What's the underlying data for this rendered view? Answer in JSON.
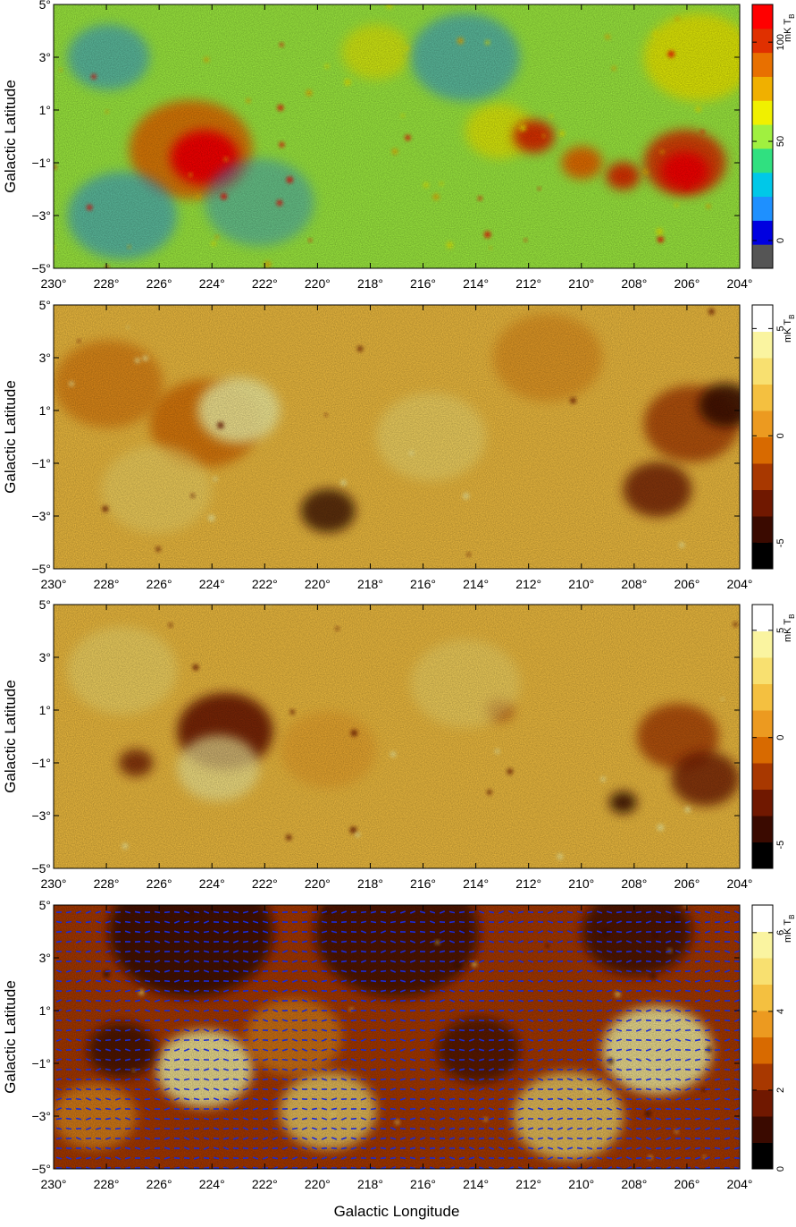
{
  "chart_data": [
    {
      "type": "heatmap",
      "ylabel": "Galactic Latitude",
      "xlim": [
        230,
        204
      ],
      "xticks": [
        {
          "value": 230,
          "label": "230°"
        },
        {
          "value": 228,
          "label": "228°"
        },
        {
          "value": 226,
          "label": "226°"
        },
        {
          "value": 224,
          "label": "224°"
        },
        {
          "value": 222,
          "label": "222°"
        },
        {
          "value": 220,
          "label": "220°"
        },
        {
          "value": 218,
          "label": "218°"
        },
        {
          "value": 216,
          "label": "216°"
        },
        {
          "value": 214,
          "label": "214°"
        },
        {
          "value": 212,
          "label": "212°"
        },
        {
          "value": 210,
          "label": "210°"
        },
        {
          "value": 208,
          "label": "208°"
        },
        {
          "value": 206,
          "label": "206°"
        },
        {
          "value": 204,
          "label": "204°"
        }
      ],
      "ylim": [
        -5,
        5
      ],
      "yticks": [
        {
          "value": 5,
          "label": "5°"
        },
        {
          "value": 3,
          "label": "3°"
        },
        {
          "value": 1,
          "label": "1°"
        },
        {
          "value": -1,
          "label": "−1°"
        },
        {
          "value": -3,
          "label": "−3°"
        },
        {
          "value": -5,
          "label": "−5°"
        }
      ],
      "colorbar_label": "mK T",
      "colorbar_label_sub": "B",
      "clim": [
        -14,
        119
      ],
      "cticks": [
        0,
        50,
        100
      ],
      "colormap": [
        "#555555",
        "#0000e0",
        "#1e90ff",
        "#00c8e8",
        "#30e080",
        "#a0f040",
        "#f0f000",
        "#f0b000",
        "#e87000",
        "#e03000",
        "#ff0000"
      ]
    },
    {
      "type": "heatmap",
      "ylabel": "Galactic Latitude",
      "xlim": [
        230,
        204
      ],
      "xticks": [
        {
          "value": 230,
          "label": "230°"
        },
        {
          "value": 228,
          "label": "228°"
        },
        {
          "value": 226,
          "label": "226°"
        },
        {
          "value": 224,
          "label": "224°"
        },
        {
          "value": 222,
          "label": "222°"
        },
        {
          "value": 220,
          "label": "220°"
        },
        {
          "value": 218,
          "label": "218°"
        },
        {
          "value": 216,
          "label": "216°"
        },
        {
          "value": 214,
          "label": "214°"
        },
        {
          "value": 212,
          "label": "212°"
        },
        {
          "value": 210,
          "label": "210°"
        },
        {
          "value": 208,
          "label": "208°"
        },
        {
          "value": 206,
          "label": "206°"
        },
        {
          "value": 204,
          "label": "204°"
        }
      ],
      "ylim": [
        -5,
        5
      ],
      "yticks": [
        {
          "value": 5,
          "label": "5°"
        },
        {
          "value": 3,
          "label": "3°"
        },
        {
          "value": 1,
          "label": "1°"
        },
        {
          "value": -1,
          "label": "−1°"
        },
        {
          "value": -3,
          "label": "−3°"
        },
        {
          "value": -5,
          "label": "−5°"
        }
      ],
      "colorbar_label": "mK T",
      "colorbar_label_sub": "B",
      "clim": [
        -6.2,
        6.1
      ],
      "cticks": [
        5,
        0,
        -5
      ],
      "colormap": [
        "#000000",
        "#3a0a00",
        "#701800",
        "#a83800",
        "#d86a00",
        "#ec9a20",
        "#f4c040",
        "#f8e070",
        "#faf4a0",
        "#ffffff"
      ]
    },
    {
      "type": "heatmap",
      "ylabel": "Galactic Latitude",
      "xlim": [
        230,
        204
      ],
      "xticks": [
        {
          "value": 230,
          "label": "230°"
        },
        {
          "value": 228,
          "label": "228°"
        },
        {
          "value": 226,
          "label": "226°"
        },
        {
          "value": 224,
          "label": "224°"
        },
        {
          "value": 222,
          "label": "222°"
        },
        {
          "value": 220,
          "label": "220°"
        },
        {
          "value": 218,
          "label": "218°"
        },
        {
          "value": 216,
          "label": "216°"
        },
        {
          "value": 214,
          "label": "214°"
        },
        {
          "value": 212,
          "label": "212°"
        },
        {
          "value": 210,
          "label": "210°"
        },
        {
          "value": 208,
          "label": "208°"
        },
        {
          "value": 206,
          "label": "206°"
        },
        {
          "value": 204,
          "label": "204°"
        }
      ],
      "ylim": [
        -5,
        5
      ],
      "yticks": [
        {
          "value": 5,
          "label": "5°"
        },
        {
          "value": 3,
          "label": "3°"
        },
        {
          "value": 1,
          "label": "1°"
        },
        {
          "value": -1,
          "label": "−1°"
        },
        {
          "value": -3,
          "label": "−3°"
        },
        {
          "value": -5,
          "label": "−5°"
        }
      ],
      "colorbar_label": "mK T",
      "colorbar_label_sub": "B",
      "clim": [
        -6.1,
        6.2
      ],
      "cticks": [
        5,
        0,
        -5
      ],
      "colormap": [
        "#000000",
        "#3a0a00",
        "#701800",
        "#a83800",
        "#d86a00",
        "#ec9a20",
        "#f4c040",
        "#f8e070",
        "#faf4a0",
        "#ffffff"
      ]
    },
    {
      "type": "heatmap",
      "ylabel": "Galactic Latitude",
      "xlabel": "Galactic Longitude",
      "xlim": [
        230,
        204
      ],
      "xticks": [
        {
          "value": 230,
          "label": "230°"
        },
        {
          "value": 228,
          "label": "228°"
        },
        {
          "value": 226,
          "label": "226°"
        },
        {
          "value": 224,
          "label": "224°"
        },
        {
          "value": 222,
          "label": "222°"
        },
        {
          "value": 220,
          "label": "220°"
        },
        {
          "value": 218,
          "label": "218°"
        },
        {
          "value": 216,
          "label": "216°"
        },
        {
          "value": 214,
          "label": "214°"
        },
        {
          "value": 212,
          "label": "212°"
        },
        {
          "value": 210,
          "label": "210°"
        },
        {
          "value": 208,
          "label": "208°"
        },
        {
          "value": 206,
          "label": "206°"
        },
        {
          "value": 204,
          "label": "204°"
        }
      ],
      "ylim": [
        -5,
        5
      ],
      "yticks": [
        {
          "value": 5,
          "label": "5°"
        },
        {
          "value": 3,
          "label": "3°"
        },
        {
          "value": 1,
          "label": "1°"
        },
        {
          "value": -1,
          "label": "−1°"
        },
        {
          "value": -3,
          "label": "−3°"
        },
        {
          "value": -5,
          "label": "−5°"
        }
      ],
      "colorbar_label": "mK T",
      "colorbar_label_sub": "B",
      "clim": [
        0,
        6.7
      ],
      "cticks": [
        6,
        4,
        2,
        0
      ],
      "colormap": [
        "#000000",
        "#3a0a00",
        "#701800",
        "#a83800",
        "#d86a00",
        "#ec9a20",
        "#f4c040",
        "#f8e070",
        "#faf4a0",
        "#ffffff"
      ]
    }
  ]
}
